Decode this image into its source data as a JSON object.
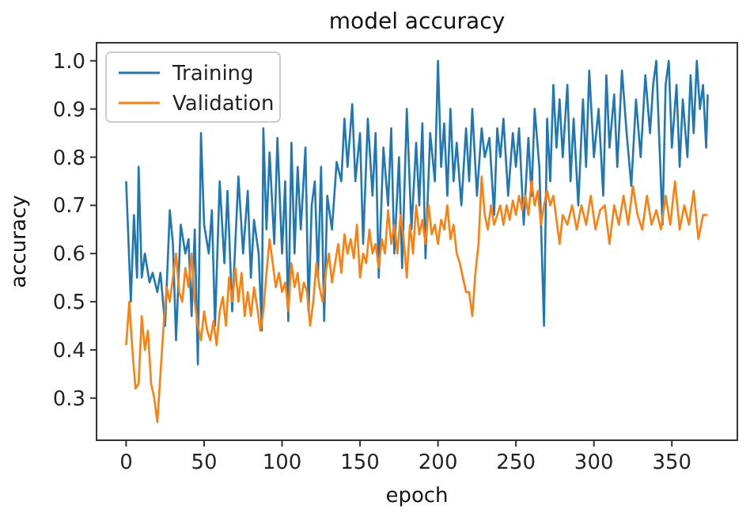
{
  "chart_data": {
    "type": "line",
    "title": "model accuracy",
    "xlabel": "epoch",
    "ylabel": "accuracy",
    "xlim": [
      -19,
      392
    ],
    "ylim": [
      0.2125,
      1.0375
    ],
    "xticks": [
      0,
      50,
      100,
      150,
      200,
      250,
      300,
      350
    ],
    "yticks": [
      {
        "value": 0.3,
        "label": "0.3"
      },
      {
        "value": 0.4,
        "label": "0.4"
      },
      {
        "value": 0.5,
        "label": "0.5"
      },
      {
        "value": 0.6,
        "label": "0.6"
      },
      {
        "value": 0.7,
        "label": "0.7"
      },
      {
        "value": 0.8,
        "label": "0.8"
      },
      {
        "value": 0.9,
        "label": "0.9"
      },
      {
        "value": 1.0,
        "label": "1.0"
      }
    ],
    "legend": "top left",
    "grid": false,
    "series": [
      {
        "name": "Training",
        "color": "#1f77b4",
        "x": [
          0,
          3,
          5,
          7,
          8,
          10,
          12,
          15,
          17,
          20,
          22,
          25,
          28,
          30,
          32,
          35,
          38,
          40,
          42,
          44,
          46,
          48,
          50,
          53,
          55,
          57,
          60,
          63,
          65,
          68,
          70,
          72,
          75,
          78,
          80,
          82,
          85,
          87,
          88,
          90,
          92,
          95,
          97,
          100,
          102,
          104,
          106,
          108,
          110,
          112,
          115,
          117,
          119,
          121,
          123,
          125,
          127,
          129,
          132,
          135,
          138,
          140,
          142,
          145,
          147,
          150,
          152,
          155,
          158,
          160,
          162,
          165,
          168,
          170,
          172,
          175,
          177,
          180,
          183,
          186,
          188,
          190,
          192,
          195,
          198,
          200,
          202,
          204,
          206,
          208,
          210,
          212,
          215,
          218,
          220,
          222,
          225,
          228,
          230,
          233,
          236,
          238,
          240,
          242,
          245,
          248,
          250,
          252,
          255,
          258,
          260,
          262,
          265,
          268,
          270,
          272,
          274,
          276,
          278,
          280,
          283,
          285,
          287,
          290,
          293,
          295,
          297,
          300,
          303,
          306,
          308,
          310,
          313,
          315,
          318,
          321,
          324,
          327,
          330,
          333,
          336,
          338,
          340,
          342,
          344,
          346,
          348,
          350,
          353,
          355,
          357,
          360,
          362,
          364,
          366,
          368,
          370,
          372,
          373
        ],
        "values": [
          0.75,
          0.5,
          0.68,
          0.55,
          0.78,
          0.55,
          0.6,
          0.54,
          0.56,
          0.52,
          0.56,
          0.45,
          0.69,
          0.62,
          0.42,
          0.66,
          0.6,
          0.63,
          0.47,
          0.65,
          0.37,
          0.85,
          0.66,
          0.6,
          0.69,
          0.45,
          0.75,
          0.58,
          0.73,
          0.48,
          0.62,
          0.76,
          0.6,
          0.73,
          0.55,
          0.67,
          0.6,
          0.44,
          0.86,
          0.65,
          0.81,
          0.62,
          0.84,
          0.6,
          0.75,
          0.46,
          0.83,
          0.6,
          0.78,
          0.65,
          0.82,
          0.48,
          0.7,
          0.75,
          0.55,
          0.78,
          0.46,
          0.72,
          0.65,
          0.79,
          0.75,
          0.88,
          0.78,
          0.91,
          0.75,
          0.85,
          0.62,
          0.88,
          0.72,
          0.85,
          0.55,
          0.82,
          0.7,
          0.86,
          0.6,
          0.8,
          0.57,
          0.9,
          0.65,
          0.83,
          0.7,
          0.87,
          0.59,
          0.85,
          0.75,
          1.0,
          0.78,
          0.87,
          0.72,
          0.9,
          0.75,
          0.83,
          0.7,
          0.86,
          0.75,
          0.9,
          0.72,
          0.86,
          0.8,
          0.84,
          0.68,
          0.86,
          0.8,
          0.88,
          0.72,
          0.85,
          0.78,
          0.86,
          0.66,
          0.84,
          0.72,
          0.9,
          0.78,
          0.45,
          0.88,
          0.75,
          0.95,
          0.82,
          0.92,
          0.8,
          0.95,
          0.75,
          0.88,
          0.7,
          0.92,
          0.78,
          0.98,
          0.8,
          0.9,
          0.72,
          0.97,
          0.82,
          0.93,
          0.78,
          0.98,
          0.85,
          0.74,
          0.92,
          0.8,
          0.97,
          0.85,
          0.95,
          1.0,
          0.83,
          0.66,
          0.95,
          1.0,
          0.82,
          0.95,
          0.78,
          0.92,
          0.8,
          0.97,
          0.85,
          1.0,
          0.9,
          0.95,
          0.82,
          0.93
        ]
      },
      {
        "name": "Validation",
        "color": "#ff7f0e",
        "x": [
          0,
          2,
          4,
          6,
          8,
          10,
          12,
          14,
          16,
          18,
          20,
          22,
          24,
          26,
          28,
          30,
          32,
          34,
          36,
          38,
          40,
          42,
          44,
          46,
          48,
          50,
          52,
          54,
          56,
          58,
          60,
          62,
          64,
          66,
          68,
          70,
          72,
          74,
          76,
          78,
          80,
          82,
          84,
          86,
          88,
          90,
          92,
          94,
          96,
          98,
          100,
          102,
          104,
          106,
          108,
          110,
          112,
          114,
          116,
          118,
          120,
          122,
          124,
          126,
          128,
          130,
          132,
          134,
          136,
          138,
          140,
          142,
          144,
          146,
          148,
          150,
          152,
          154,
          156,
          158,
          160,
          162,
          164,
          166,
          168,
          170,
          172,
          174,
          176,
          178,
          180,
          182,
          184,
          186,
          188,
          190,
          192,
          194,
          196,
          198,
          200,
          202,
          204,
          206,
          208,
          210,
          212,
          214,
          216,
          218,
          220,
          222,
          224,
          226,
          228,
          230,
          232,
          234,
          236,
          238,
          240,
          242,
          244,
          246,
          248,
          250,
          252,
          254,
          256,
          258,
          260,
          262,
          264,
          266,
          268,
          270,
          272,
          274,
          276,
          278,
          280,
          283,
          286,
          289,
          292,
          295,
          298,
          301,
          304,
          307,
          310,
          313,
          316,
          319,
          322,
          325,
          328,
          331,
          334,
          337,
          340,
          343,
          346,
          349,
          352,
          355,
          358,
          361,
          364,
          367,
          370,
          373
        ],
        "values": [
          0.41,
          0.5,
          0.4,
          0.32,
          0.33,
          0.47,
          0.4,
          0.44,
          0.33,
          0.3,
          0.25,
          0.35,
          0.45,
          0.53,
          0.5,
          0.55,
          0.6,
          0.52,
          0.5,
          0.57,
          0.53,
          0.6,
          0.5,
          0.45,
          0.42,
          0.48,
          0.44,
          0.42,
          0.46,
          0.41,
          0.48,
          0.51,
          0.45,
          0.55,
          0.5,
          0.57,
          0.5,
          0.56,
          0.47,
          0.52,
          0.47,
          0.53,
          0.49,
          0.44,
          0.48,
          0.56,
          0.63,
          0.58,
          0.53,
          0.56,
          0.52,
          0.54,
          0.48,
          0.58,
          0.53,
          0.56,
          0.5,
          0.54,
          0.52,
          0.45,
          0.5,
          0.58,
          0.53,
          0.5,
          0.56,
          0.6,
          0.54,
          0.58,
          0.62,
          0.56,
          0.64,
          0.6,
          0.63,
          0.59,
          0.66,
          0.55,
          0.6,
          0.58,
          0.65,
          0.6,
          0.62,
          0.57,
          0.63,
          0.6,
          0.69,
          0.62,
          0.66,
          0.6,
          0.68,
          0.63,
          0.55,
          0.66,
          0.6,
          0.7,
          0.64,
          0.67,
          0.62,
          0.7,
          0.64,
          0.66,
          0.62,
          0.67,
          0.65,
          0.7,
          0.63,
          0.66,
          0.6,
          0.58,
          0.55,
          0.52,
          0.52,
          0.47,
          0.56,
          0.62,
          0.76,
          0.68,
          0.65,
          0.7,
          0.66,
          0.68,
          0.7,
          0.66,
          0.7,
          0.67,
          0.71,
          0.68,
          0.72,
          0.69,
          0.72,
          0.68,
          0.75,
          0.7,
          0.73,
          0.66,
          0.7,
          0.73,
          0.7,
          0.72,
          0.67,
          0.62,
          0.68,
          0.66,
          0.7,
          0.65,
          0.7,
          0.66,
          0.72,
          0.65,
          0.69,
          0.7,
          0.62,
          0.7,
          0.66,
          0.72,
          0.66,
          0.74,
          0.68,
          0.65,
          0.72,
          0.66,
          0.69,
          0.65,
          0.72,
          0.66,
          0.75,
          0.65,
          0.7,
          0.66,
          0.73,
          0.63,
          0.68,
          0.68
        ]
      }
    ]
  }
}
